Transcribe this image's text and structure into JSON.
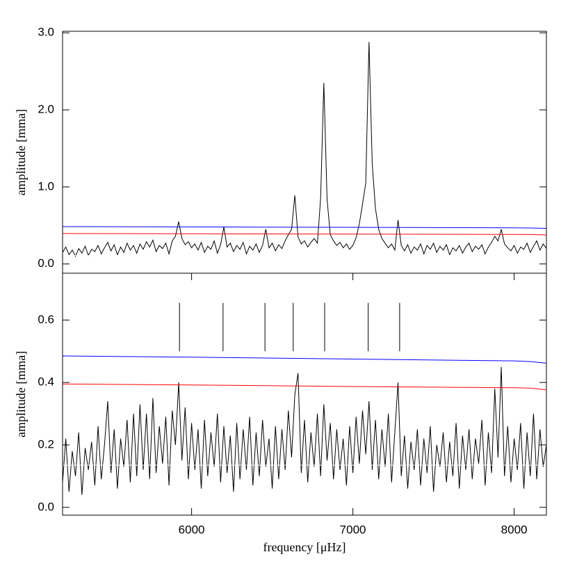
{
  "chart_data": [
    {
      "type": "line",
      "ylabel": "amplitude [mma]",
      "xlim": [
        5200,
        8200
      ],
      "ylim": [
        -0.12,
        3.02
      ],
      "yticks": [
        {
          "value": 0,
          "label": "0.0"
        },
        {
          "value": 1,
          "label": "1.0"
        },
        {
          "value": 2,
          "label": "2.0"
        },
        {
          "value": 3,
          "label": "3.0"
        }
      ],
      "x": [
        5200,
        5220,
        5240,
        5260,
        5280,
        5300,
        5320,
        5340,
        5360,
        5380,
        5400,
        5420,
        5440,
        5460,
        5480,
        5500,
        5520,
        5540,
        5560,
        5580,
        5600,
        5620,
        5640,
        5660,
        5680,
        5700,
        5720,
        5740,
        5760,
        5780,
        5800,
        5820,
        5840,
        5860,
        5880,
        5900,
        5920,
        5940,
        5960,
        5980,
        6000,
        6020,
        6040,
        6060,
        6080,
        6100,
        6120,
        6140,
        6160,
        6180,
        6200,
        6220,
        6240,
        6260,
        6280,
        6300,
        6320,
        6340,
        6360,
        6380,
        6400,
        6420,
        6440,
        6460,
        6480,
        6500,
        6520,
        6540,
        6560,
        6580,
        6600,
        6620,
        6640,
        6660,
        6680,
        6700,
        6720,
        6740,
        6760,
        6780,
        6800,
        6820,
        6840,
        6860,
        6880,
        6900,
        6920,
        6940,
        6960,
        6980,
        7000,
        7020,
        7040,
        7060,
        7080,
        7100,
        7120,
        7140,
        7160,
        7180,
        7200,
        7220,
        7240,
        7260,
        7280,
        7300,
        7320,
        7340,
        7360,
        7380,
        7400,
        7420,
        7440,
        7460,
        7480,
        7500,
        7520,
        7540,
        7560,
        7580,
        7600,
        7620,
        7640,
        7660,
        7680,
        7700,
        7720,
        7740,
        7760,
        7780,
        7800,
        7820,
        7840,
        7860,
        7880,
        7900,
        7920,
        7940,
        7960,
        7980,
        8000,
        8020,
        8040,
        8060,
        8080,
        8100,
        8120,
        8140,
        8160,
        8180,
        8200
      ],
      "series": [
        {
          "color": "#000000",
          "values": [
            0.15,
            0.22,
            0.12,
            0.18,
            0.1,
            0.2,
            0.14,
            0.23,
            0.11,
            0.19,
            0.16,
            0.24,
            0.13,
            0.21,
            0.28,
            0.17,
            0.25,
            0.12,
            0.22,
            0.15,
            0.27,
            0.18,
            0.24,
            0.14,
            0.26,
            0.19,
            0.29,
            0.22,
            0.31,
            0.16,
            0.24,
            0.2,
            0.27,
            0.13,
            0.3,
            0.36,
            0.55,
            0.33,
            0.25,
            0.29,
            0.21,
            0.26,
            0.18,
            0.28,
            0.15,
            0.23,
            0.19,
            0.3,
            0.14,
            0.25,
            0.48,
            0.22,
            0.27,
            0.16,
            0.24,
            0.19,
            0.28,
            0.13,
            0.23,
            0.18,
            0.26,
            0.15,
            0.24,
            0.45,
            0.21,
            0.27,
            0.17,
            0.25,
            0.2,
            0.3,
            0.38,
            0.45,
            0.89,
            0.35,
            0.26,
            0.3,
            0.22,
            0.28,
            0.33,
            0.27,
            0.85,
            2.35,
            0.84,
            0.38,
            0.3,
            0.24,
            0.28,
            0.21,
            0.26,
            0.19,
            0.24,
            0.34,
            0.52,
            0.78,
            1.05,
            2.88,
            1.3,
            0.72,
            0.45,
            0.33,
            0.27,
            0.21,
            0.26,
            0.18,
            0.57,
            0.24,
            0.17,
            0.25,
            0.14,
            0.22,
            0.18,
            0.26,
            0.13,
            0.24,
            0.19,
            0.27,
            0.15,
            0.23,
            0.18,
            0.25,
            0.12,
            0.21,
            0.17,
            0.24,
            0.14,
            0.22,
            0.27,
            0.16,
            0.23,
            0.19,
            0.25,
            0.13,
            0.22,
            0.28,
            0.36,
            0.3,
            0.45,
            0.26,
            0.21,
            0.17,
            0.24,
            0.14,
            0.22,
            0.19,
            0.27,
            0.15,
            0.23,
            0.3,
            0.18,
            0.26,
            0.2
          ]
        },
        {
          "color": "#ffffff",
          "x": [
            5200,
            8200
          ],
          "values": [
            0.11,
            0.11
          ]
        },
        {
          "color": "#0000ff",
          "x": [
            5200,
            6000,
            7000,
            8000,
            8100,
            8200
          ],
          "values": [
            0.485,
            0.481,
            0.475,
            0.469,
            0.467,
            0.462
          ]
        },
        {
          "color": "#ff0000",
          "x": [
            5200,
            6000,
            7000,
            8000,
            8100,
            8200
          ],
          "values": [
            0.395,
            0.392,
            0.387,
            0.383,
            0.382,
            0.376
          ]
        }
      ]
    },
    {
      "type": "line",
      "xlabel": "frequency [μHz]",
      "ylabel": "amplitude [mma]",
      "xlim": [
        5200,
        8200
      ],
      "ylim": [
        -0.025,
        0.75
      ],
      "xticks": [
        6000,
        7000,
        8000
      ],
      "yticks": [
        {
          "value": 0,
          "label": "0.0"
        },
        0.2,
        0.4,
        0.6
      ],
      "x": [
        5200,
        5220,
        5240,
        5260,
        5280,
        5300,
        5320,
        5340,
        5360,
        5380,
        5400,
        5420,
        5440,
        5460,
        5480,
        5500,
        5520,
        5540,
        5560,
        5580,
        5600,
        5620,
        5640,
        5660,
        5680,
        5700,
        5720,
        5740,
        5760,
        5780,
        5800,
        5820,
        5840,
        5860,
        5880,
        5900,
        5920,
        5940,
        5960,
        5980,
        6000,
        6020,
        6040,
        6060,
        6080,
        6100,
        6120,
        6140,
        6160,
        6180,
        6200,
        6220,
        6240,
        6260,
        6280,
        6300,
        6320,
        6340,
        6360,
        6380,
        6400,
        6420,
        6440,
        6460,
        6480,
        6500,
        6520,
        6540,
        6560,
        6580,
        6600,
        6620,
        6640,
        6660,
        6680,
        6700,
        6720,
        6740,
        6760,
        6780,
        6800,
        6820,
        6840,
        6860,
        6880,
        6900,
        6920,
        6940,
        6960,
        6980,
        7000,
        7020,
        7040,
        7060,
        7080,
        7100,
        7120,
        7140,
        7160,
        7180,
        7200,
        7220,
        7240,
        7260,
        7280,
        7300,
        7320,
        7340,
        7360,
        7380,
        7400,
        7420,
        7440,
        7460,
        7480,
        7500,
        7520,
        7540,
        7560,
        7580,
        7600,
        7620,
        7640,
        7660,
        7680,
        7700,
        7720,
        7740,
        7760,
        7780,
        7800,
        7820,
        7840,
        7860,
        7880,
        7900,
        7920,
        7940,
        7960,
        7980,
        8000,
        8020,
        8040,
        8060,
        8080,
        8100,
        8120,
        8140,
        8160,
        8180,
        8200
      ],
      "series": [
        {
          "color": "#000000",
          "values": [
            0.08,
            0.22,
            0.05,
            0.18,
            0.1,
            0.24,
            0.04,
            0.19,
            0.12,
            0.21,
            0.07,
            0.26,
            0.09,
            0.2,
            0.34,
            0.11,
            0.25,
            0.06,
            0.22,
            0.13,
            0.28,
            0.08,
            0.3,
            0.1,
            0.33,
            0.12,
            0.3,
            0.09,
            0.35,
            0.11,
            0.26,
            0.14,
            0.29,
            0.07,
            0.31,
            0.2,
            0.4,
            0.15,
            0.32,
            0.09,
            0.27,
            0.12,
            0.25,
            0.06,
            0.28,
            0.1,
            0.24,
            0.13,
            0.3,
            0.08,
            0.26,
            0.11,
            0.23,
            0.05,
            0.27,
            0.09,
            0.25,
            0.12,
            0.29,
            0.07,
            0.24,
            0.1,
            0.28,
            0.13,
            0.22,
            0.06,
            0.26,
            0.09,
            0.25,
            0.12,
            0.31,
            0.16,
            0.36,
            0.43,
            0.11,
            0.28,
            0.08,
            0.24,
            0.13,
            0.3,
            0.1,
            0.33,
            0.15,
            0.27,
            0.09,
            0.25,
            0.12,
            0.22,
            0.07,
            0.26,
            0.11,
            0.29,
            0.14,
            0.31,
            0.17,
            0.34,
            0.12,
            0.28,
            0.09,
            0.25,
            0.13,
            0.3,
            0.08,
            0.24,
            0.4,
            0.1,
            0.23,
            0.06,
            0.21,
            0.12,
            0.25,
            0.07,
            0.22,
            0.11,
            0.26,
            0.05,
            0.2,
            0.13,
            0.24,
            0.08,
            0.21,
            0.1,
            0.27,
            0.06,
            0.23,
            0.12,
            0.25,
            0.09,
            0.22,
            0.14,
            0.28,
            0.07,
            0.24,
            0.11,
            0.38,
            0.16,
            0.45,
            0.1,
            0.26,
            0.08,
            0.22,
            0.12,
            0.27,
            0.06,
            0.24,
            0.1,
            0.3,
            0.09,
            0.25,
            0.13,
            0.2
          ]
        },
        {
          "color": "#ffffff",
          "x": [
            5200,
            8200
          ],
          "values": [
            0.135,
            0.135
          ]
        },
        {
          "color": "#0000ff",
          "x": [
            5200,
            6000,
            7000,
            8000,
            8100,
            8200
          ],
          "values": [
            0.485,
            0.481,
            0.475,
            0.469,
            0.467,
            0.462
          ]
        },
        {
          "color": "#ff0000",
          "x": [
            5200,
            6000,
            7000,
            8000,
            8100,
            8200
          ],
          "values": [
            0.395,
            0.392,
            0.387,
            0.383,
            0.382,
            0.376
          ]
        }
      ],
      "markers": {
        "x": [
          5925,
          6195,
          6455,
          6630,
          6825,
          7095,
          7290
        ],
        "low": 0.5,
        "high": 0.655
      }
    }
  ]
}
